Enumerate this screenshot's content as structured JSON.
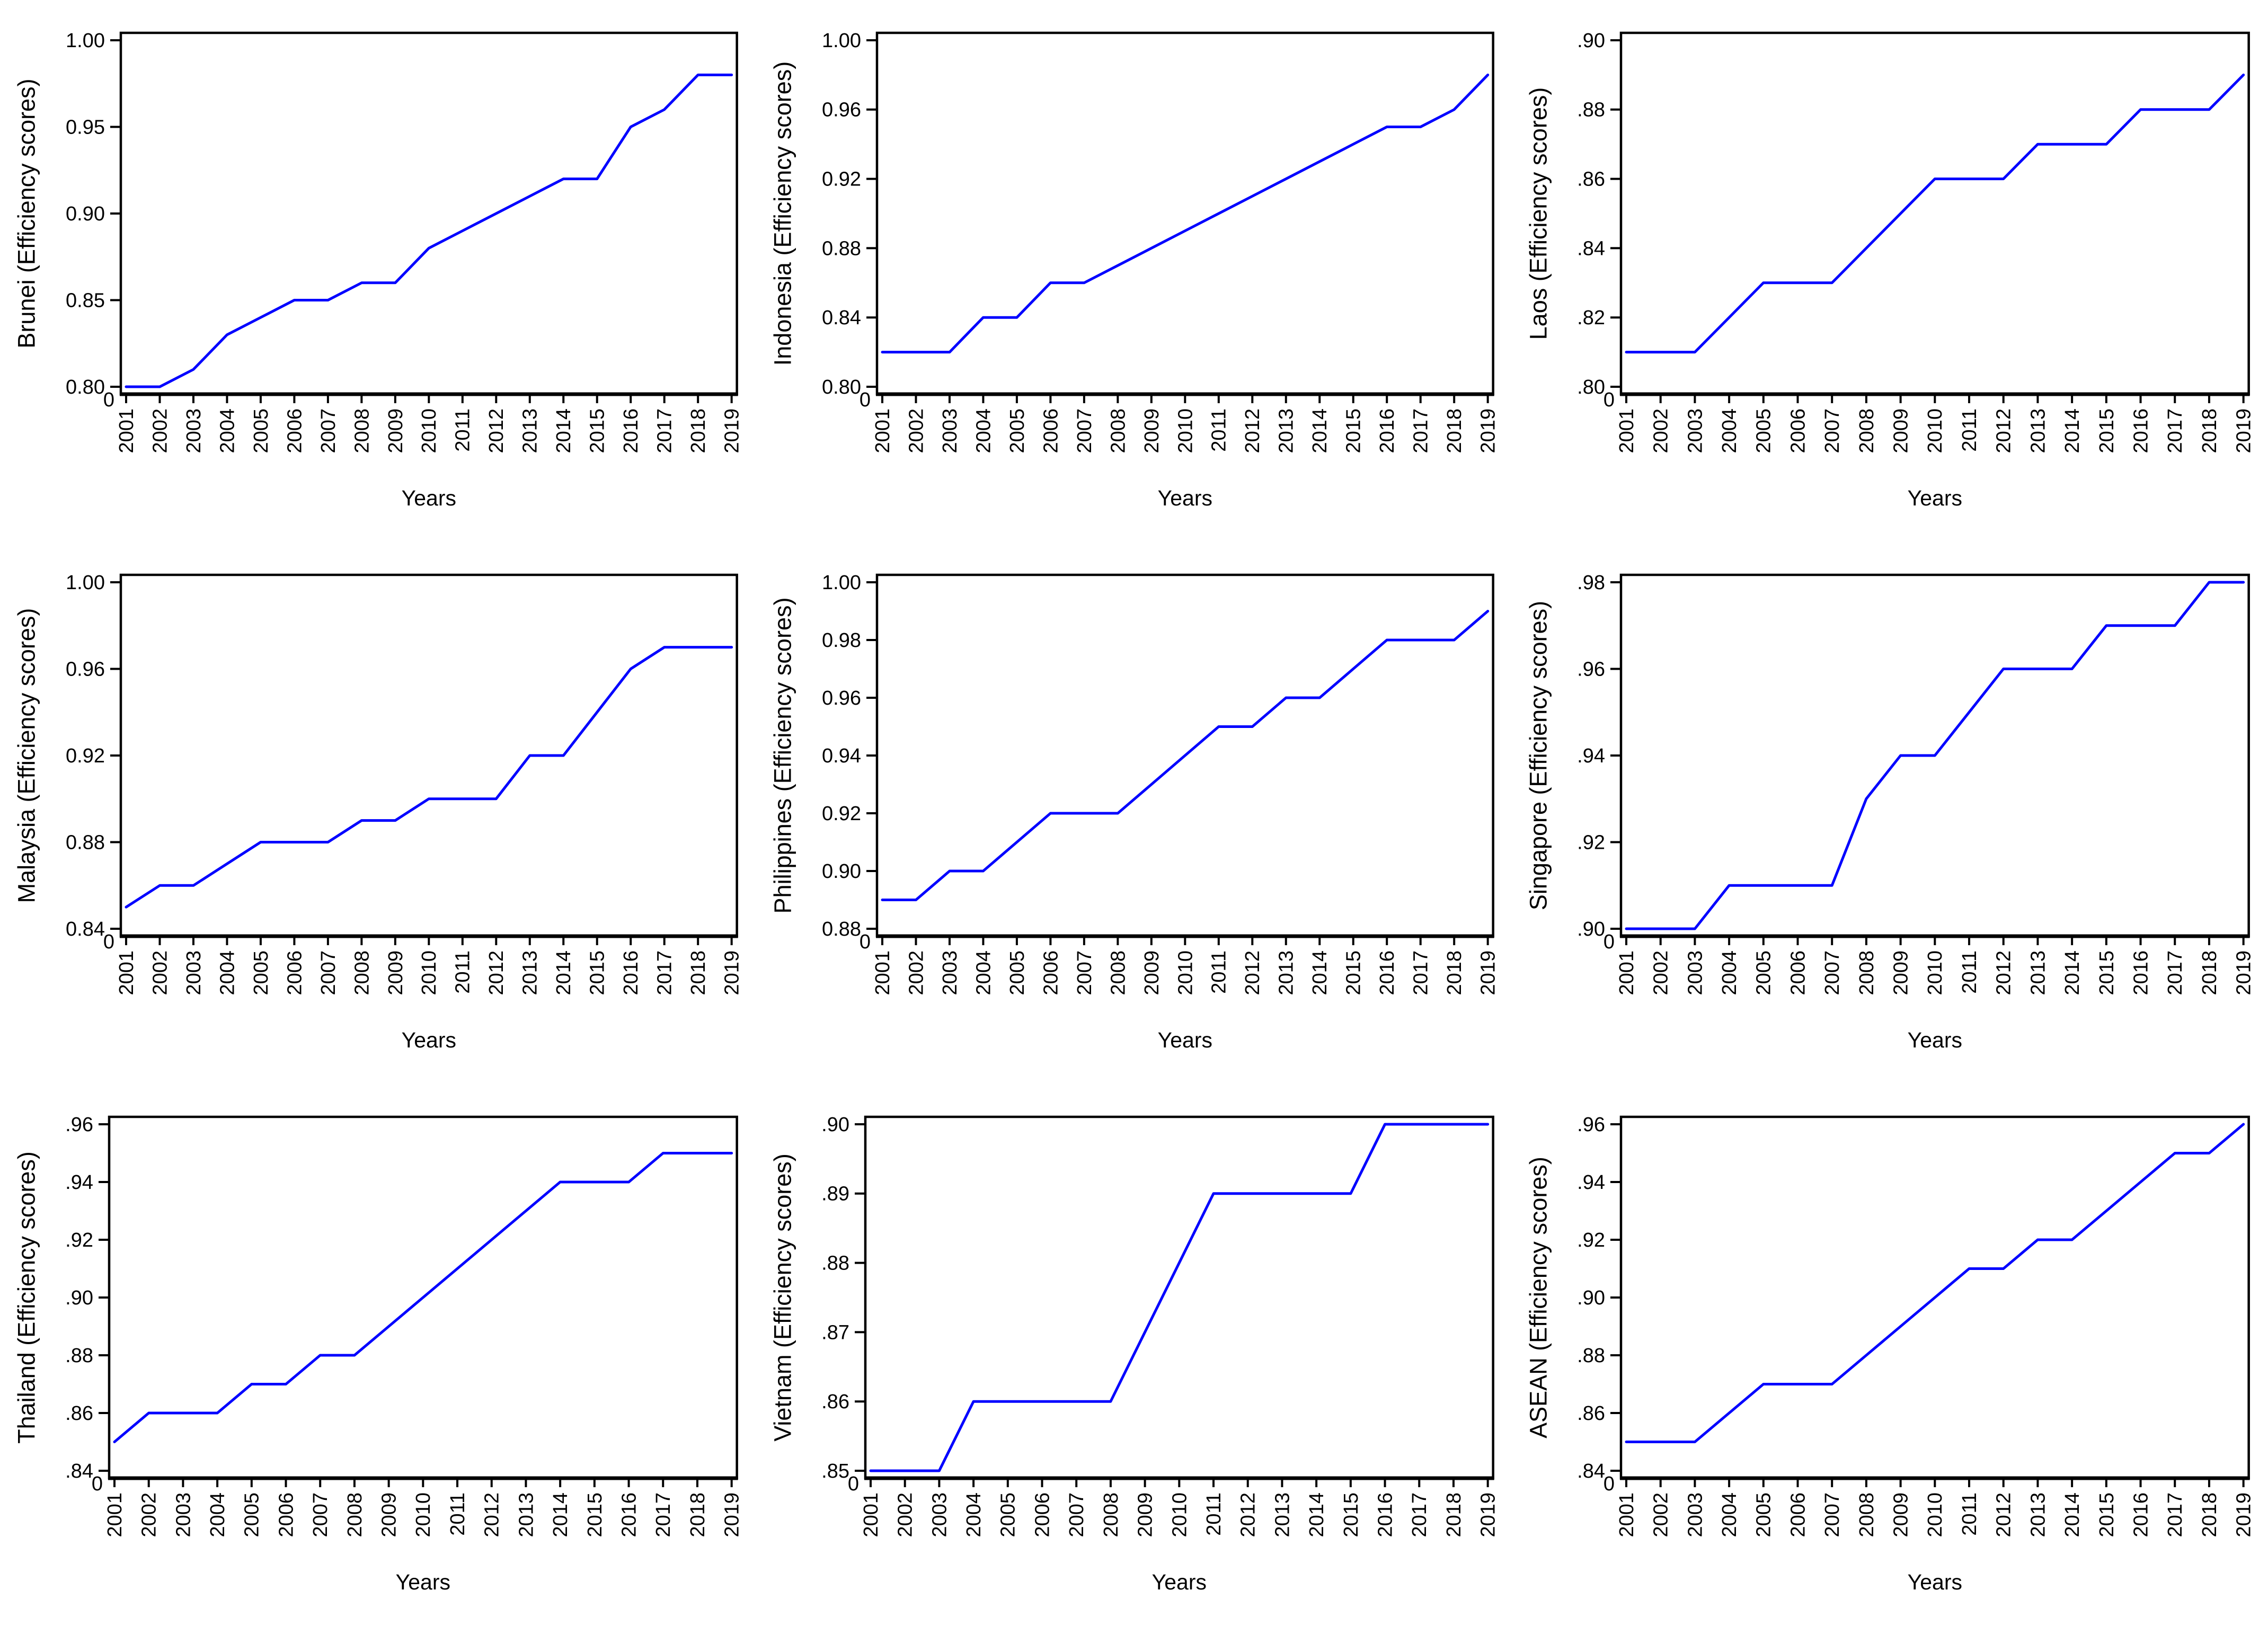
{
  "figure": {
    "background": "#ffffff",
    "layout": "3x3-grid"
  },
  "style": {
    "line_color": "#0000ff",
    "axis_color": "#000000",
    "text_color": "#000000"
  },
  "chart_data": [
    {
      "type": "line",
      "name": "Brunei",
      "ylabel": "Brunei (Efficiency scores)",
      "xlabel": "Years",
      "origin_label": "0",
      "x": [
        2001,
        2002,
        2003,
        2004,
        2005,
        2006,
        2007,
        2008,
        2009,
        2010,
        2011,
        2012,
        2013,
        2014,
        2015,
        2016,
        2017,
        2018,
        2019
      ],
      "values": [
        0.8,
        0.8,
        0.81,
        0.83,
        0.84,
        0.85,
        0.85,
        0.86,
        0.86,
        0.88,
        0.89,
        0.9,
        0.91,
        0.92,
        0.92,
        0.95,
        0.96,
        0.98,
        0.98
      ],
      "ylim": [
        0.8,
        1.0
      ],
      "yticks": [
        0.8,
        0.85,
        0.9,
        0.95,
        1.0
      ],
      "ytick_labels": [
        "0.80",
        "0.85",
        "0.90",
        "0.95",
        "1.00"
      ],
      "grid": false,
      "legend": "none"
    },
    {
      "type": "line",
      "name": "Indonesia",
      "ylabel": "Indonesia (Efficiency scores)",
      "xlabel": "Years",
      "origin_label": "0",
      "x": [
        2001,
        2002,
        2003,
        2004,
        2005,
        2006,
        2007,
        2008,
        2009,
        2010,
        2011,
        2012,
        2013,
        2014,
        2015,
        2016,
        2017,
        2018,
        2019
      ],
      "values": [
        0.82,
        0.82,
        0.82,
        0.84,
        0.84,
        0.86,
        0.86,
        0.87,
        0.88,
        0.89,
        0.9,
        0.91,
        0.92,
        0.93,
        0.94,
        0.95,
        0.95,
        0.96,
        0.98
      ],
      "ylim": [
        0.8,
        1.0
      ],
      "yticks": [
        0.8,
        0.84,
        0.88,
        0.92,
        0.96,
        1.0
      ],
      "ytick_labels": [
        "0.80",
        "0.84",
        "0.88",
        "0.92",
        "0.96",
        "1.00"
      ],
      "grid": false,
      "legend": "none"
    },
    {
      "type": "line",
      "name": "Laos",
      "ylabel": "Laos (Efficiency scores)",
      "xlabel": "Years",
      "origin_label": "0",
      "x": [
        2001,
        2002,
        2003,
        2004,
        2005,
        2006,
        2007,
        2008,
        2009,
        2010,
        2011,
        2012,
        2013,
        2014,
        2015,
        2016,
        2017,
        2018,
        2019
      ],
      "values": [
        0.81,
        0.81,
        0.81,
        0.82,
        0.83,
        0.83,
        0.83,
        0.84,
        0.85,
        0.86,
        0.86,
        0.86,
        0.87,
        0.87,
        0.87,
        0.88,
        0.88,
        0.88,
        0.89
      ],
      "ylim": [
        0.8,
        0.9
      ],
      "yticks": [
        0.8,
        0.82,
        0.84,
        0.86,
        0.88,
        0.9
      ],
      "ytick_labels": [
        ".80",
        ".82",
        ".84",
        ".86",
        ".88",
        ".90"
      ],
      "grid": false,
      "legend": "none"
    },
    {
      "type": "line",
      "name": "Malaysia",
      "ylabel": "Malaysia (Efficiency scores)",
      "xlabel": "Years",
      "origin_label": "0",
      "x": [
        2001,
        2002,
        2003,
        2004,
        2005,
        2006,
        2007,
        2008,
        2009,
        2010,
        2011,
        2012,
        2013,
        2014,
        2015,
        2016,
        2017,
        2018,
        2019
      ],
      "values": [
        0.85,
        0.86,
        0.86,
        0.87,
        0.88,
        0.88,
        0.88,
        0.89,
        0.89,
        0.9,
        0.9,
        0.9,
        0.92,
        0.92,
        0.94,
        0.96,
        0.97,
        0.97,
        0.97
      ],
      "ylim": [
        0.84,
        1.0
      ],
      "yticks": [
        0.84,
        0.88,
        0.92,
        0.96,
        1.0
      ],
      "ytick_labels": [
        "0.84",
        "0.88",
        "0.92",
        "0.96",
        "1.00"
      ],
      "grid": false,
      "legend": "none"
    },
    {
      "type": "line",
      "name": "Philippines",
      "ylabel": "Philippines (Efficiency scores)",
      "xlabel": "Years",
      "origin_label": "0",
      "x": [
        2001,
        2002,
        2003,
        2004,
        2005,
        2006,
        2007,
        2008,
        2009,
        2010,
        2011,
        2012,
        2013,
        2014,
        2015,
        2016,
        2017,
        2018,
        2019
      ],
      "values": [
        0.89,
        0.89,
        0.9,
        0.9,
        0.91,
        0.92,
        0.92,
        0.92,
        0.93,
        0.94,
        0.95,
        0.95,
        0.96,
        0.96,
        0.97,
        0.98,
        0.98,
        0.98,
        0.99
      ],
      "ylim": [
        0.88,
        1.0
      ],
      "yticks": [
        0.88,
        0.9,
        0.92,
        0.94,
        0.96,
        0.98,
        1.0
      ],
      "ytick_labels": [
        "0.88",
        "0.90",
        "0.92",
        "0.94",
        "0.96",
        "0.98",
        "1.00"
      ],
      "grid": false,
      "legend": "none"
    },
    {
      "type": "line",
      "name": "Singapore",
      "ylabel": "Singapore (Efficiency scores)",
      "xlabel": "Years",
      "origin_label": "0",
      "x": [
        2001,
        2002,
        2003,
        2004,
        2005,
        2006,
        2007,
        2008,
        2009,
        2010,
        2011,
        2012,
        2013,
        2014,
        2015,
        2016,
        2017,
        2018,
        2019
      ],
      "values": [
        0.9,
        0.9,
        0.9,
        0.91,
        0.91,
        0.91,
        0.91,
        0.93,
        0.94,
        0.94,
        0.95,
        0.96,
        0.96,
        0.96,
        0.97,
        0.97,
        0.97,
        0.98,
        0.98
      ],
      "ylim": [
        0.9,
        0.98
      ],
      "yticks": [
        0.9,
        0.92,
        0.94,
        0.96,
        0.98
      ],
      "ytick_labels": [
        ".90",
        ".92",
        ".94",
        ".96",
        ".98"
      ],
      "grid": false,
      "legend": "none"
    },
    {
      "type": "line",
      "name": "Thailand",
      "ylabel": "Thailand (Efficiency scores)",
      "xlabel": "Years",
      "origin_label": "0",
      "x": [
        2001,
        2002,
        2003,
        2004,
        2005,
        2006,
        2007,
        2008,
        2009,
        2010,
        2011,
        2012,
        2013,
        2014,
        2015,
        2016,
        2017,
        2018,
        2019
      ],
      "values": [
        0.85,
        0.86,
        0.86,
        0.86,
        0.87,
        0.87,
        0.88,
        0.88,
        0.89,
        0.9,
        0.91,
        0.92,
        0.93,
        0.94,
        0.94,
        0.94,
        0.95,
        0.95,
        0.95
      ],
      "ylim": [
        0.84,
        0.96
      ],
      "yticks": [
        0.84,
        0.86,
        0.88,
        0.9,
        0.92,
        0.94,
        0.96
      ],
      "ytick_labels": [
        ".84",
        ".86",
        ".88",
        ".90",
        ".92",
        ".94",
        ".96"
      ],
      "grid": false,
      "legend": "none"
    },
    {
      "type": "line",
      "name": "Vietnam",
      "ylabel": "Vietnam (Efficiency scores)",
      "xlabel": "Years",
      "origin_label": "0",
      "x": [
        2001,
        2002,
        2003,
        2004,
        2005,
        2006,
        2007,
        2008,
        2009,
        2010,
        2011,
        2012,
        2013,
        2014,
        2015,
        2016,
        2017,
        2018,
        2019
      ],
      "values": [
        0.85,
        0.85,
        0.85,
        0.86,
        0.86,
        0.86,
        0.86,
        0.86,
        0.87,
        0.88,
        0.89,
        0.89,
        0.89,
        0.89,
        0.89,
        0.9,
        0.9,
        0.9,
        0.9
      ],
      "ylim": [
        0.85,
        0.9
      ],
      "yticks": [
        0.85,
        0.86,
        0.87,
        0.88,
        0.89,
        0.9
      ],
      "ytick_labels": [
        ".85",
        ".86",
        ".87",
        ".88",
        ".89",
        ".90"
      ],
      "grid": false,
      "legend": "none"
    },
    {
      "type": "line",
      "name": "ASEAN",
      "ylabel": "ASEAN (Efficiency scores)",
      "xlabel": "Years",
      "origin_label": "0",
      "x": [
        2001,
        2002,
        2003,
        2004,
        2005,
        2006,
        2007,
        2008,
        2009,
        2010,
        2011,
        2012,
        2013,
        2014,
        2015,
        2016,
        2017,
        2018,
        2019
      ],
      "values": [
        0.85,
        0.85,
        0.85,
        0.86,
        0.87,
        0.87,
        0.87,
        0.88,
        0.89,
        0.9,
        0.91,
        0.91,
        0.92,
        0.92,
        0.93,
        0.94,
        0.95,
        0.95,
        0.96
      ],
      "ylim": [
        0.84,
        0.96
      ],
      "yticks": [
        0.84,
        0.86,
        0.88,
        0.9,
        0.92,
        0.94,
        0.96
      ],
      "ytick_labels": [
        ".84",
        ".86",
        ".88",
        ".90",
        ".92",
        ".94",
        ".96"
      ],
      "grid": false,
      "legend": "none"
    }
  ]
}
